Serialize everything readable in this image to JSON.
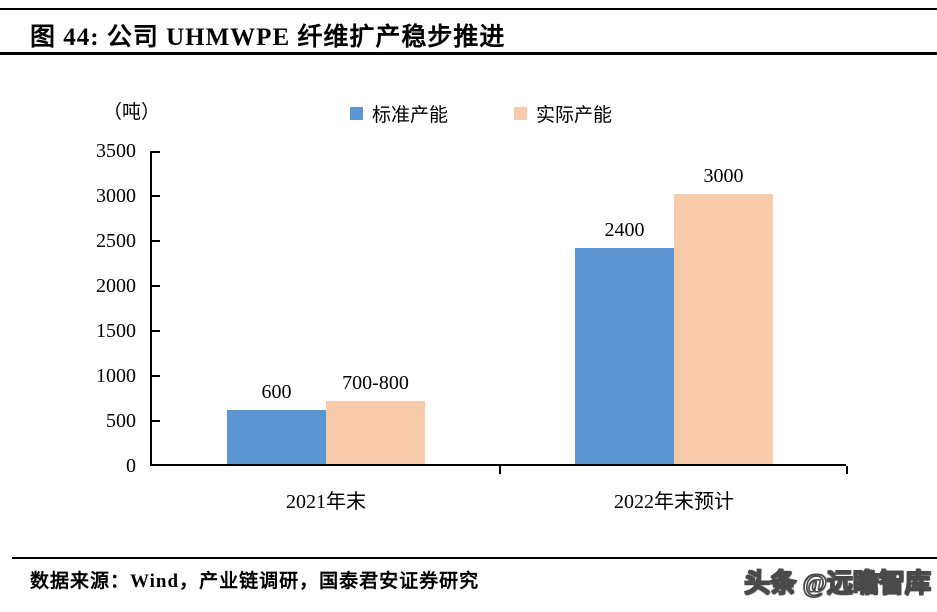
{
  "header": {
    "title": "图 44: 公司 UHMWPE 纤维扩产稳步推进"
  },
  "chart_data": {
    "type": "bar",
    "title": "公司UHMWPE纤维扩产稳步推进",
    "unit_label": "（吨）",
    "categories": [
      "2021年末",
      "2022年末预计"
    ],
    "series": [
      {
        "name": "标准产能",
        "color": "#5B96D2",
        "values": [
          600,
          2400
        ],
        "value_labels": [
          "600",
          "2400"
        ]
      },
      {
        "name": "实际产能",
        "color": "#F7CBAC",
        "values": [
          700,
          3000
        ],
        "value_labels": [
          "700-800",
          "3000"
        ]
      }
    ],
    "ylim": [
      0,
      3500
    ],
    "yticks": [
      0,
      500,
      1000,
      1500,
      2000,
      2500,
      3000,
      3500
    ],
    "ylabel": "",
    "xlabel": "",
    "grid": false,
    "legend_position": "top-center",
    "axis_color": "#000000"
  },
  "footer": {
    "source": "数据来源：Wind，产业链调研，国泰君安证券研究",
    "watermark": "头条 @远瞻智库"
  }
}
